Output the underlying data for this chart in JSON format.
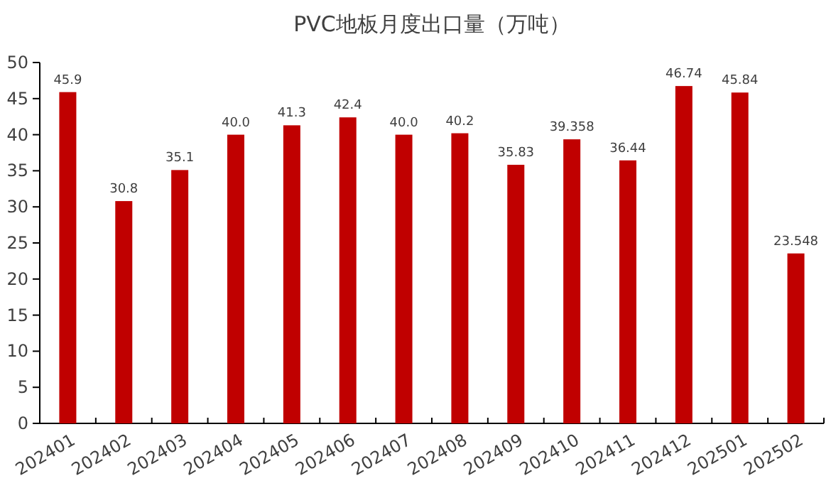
{
  "chart_data": {
    "type": "bar",
    "title": "PVC地板月度出口量（万吨）",
    "categories": [
      "202401",
      "202402",
      "202403",
      "202404",
      "202405",
      "202406",
      "202407",
      "202408",
      "202409",
      "202410",
      "202411",
      "202412",
      "202501",
      "202502"
    ],
    "values": [
      45.9,
      30.8,
      35.1,
      40.0,
      41.3,
      42.4,
      40.0,
      40.2,
      35.83,
      39.358,
      36.44,
      46.74,
      45.84,
      23.548
    ],
    "value_labels": [
      "45.9",
      "30.8",
      "35.1",
      "40.0",
      "41.3",
      "42.4",
      "40.0",
      "40.2",
      "35.83",
      "39.358",
      "36.44",
      "46.74",
      "45.84",
      "23.548"
    ],
    "color": "#c00000",
    "ylim": [
      0,
      50
    ],
    "yticks": [
      0,
      5,
      10,
      15,
      20,
      25,
      30,
      35,
      40,
      45,
      50
    ]
  }
}
